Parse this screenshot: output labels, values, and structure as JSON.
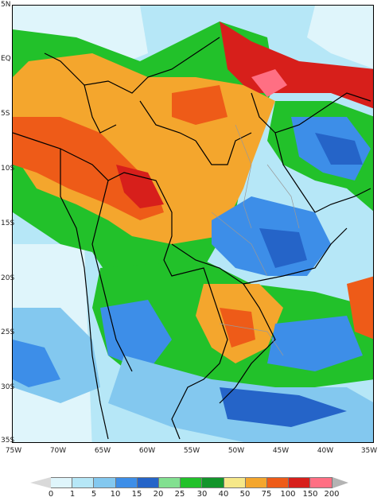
{
  "map": {
    "lat_labels": [
      "5N",
      "EQ",
      "5S",
      "10S",
      "15S",
      "20S",
      "25S",
      "30S",
      "35S"
    ],
    "lon_labels": [
      "75W",
      "70W",
      "65W",
      "60W",
      "55W",
      "50W",
      "45W",
      "40W",
      "35W"
    ],
    "legend": {
      "labels": [
        "0",
        "1",
        "5",
        "10",
        "15",
        "20",
        "25",
        "30",
        "40",
        "50",
        "75",
        "100",
        "150",
        "200"
      ],
      "colors": [
        "#ffffff",
        "#dff5fb",
        "#b6e7f7",
        "#83c8ef",
        "#3d8ee8",
        "#2564c8",
        "#82e090",
        "#22c12a",
        "#12952a",
        "#f6e889",
        "#f4a62d",
        "#ee5b18",
        "#d71f1b",
        "#ff6f83",
        "#b3b3b3"
      ]
    },
    "fields": [
      {
        "name": "north-red-band",
        "color": "#d71f1b"
      },
      {
        "name": "amazon-orange",
        "color": "#f4a62d"
      },
      {
        "name": "central-red",
        "color": "#ee5b18"
      },
      {
        "name": "south-green",
        "color": "#22c12a"
      },
      {
        "name": "south-blue",
        "color": "#3d8ee8"
      }
    ]
  }
}
